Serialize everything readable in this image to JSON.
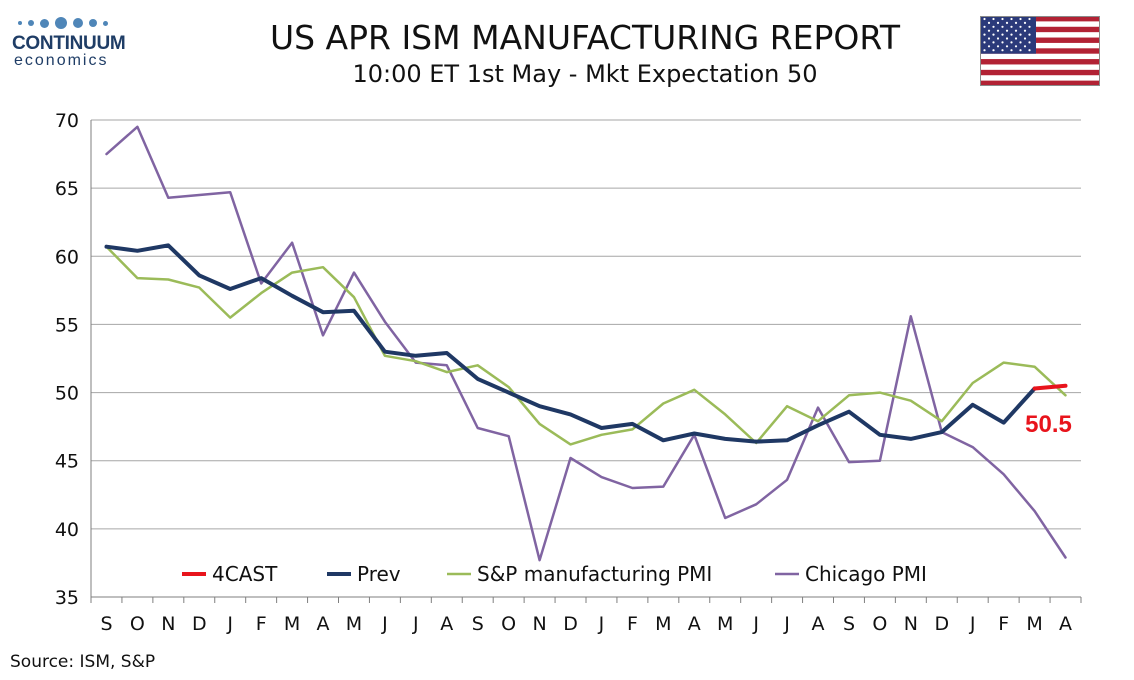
{
  "logo": {
    "name": "CONTINUUM",
    "sub": "economics"
  },
  "header": {
    "title": "US APR ISM MANUFACTURING REPORT",
    "subtitle": "10:00 ET 1st May - Mkt Expectation 50"
  },
  "flag_icon": "us-flag-icon",
  "source": "Source: ISM, S&P",
  "colors": {
    "forecast": "#e8141c",
    "prev": "#1f3864",
    "sp": "#9bbb59",
    "chicago": "#8064a2",
    "grid": "#a6a6a6"
  },
  "chart_data": {
    "type": "line",
    "categories": [
      "S",
      "O",
      "N",
      "D",
      "J",
      "F",
      "M",
      "A",
      "M",
      "J",
      "J",
      "A",
      "S",
      "O",
      "N",
      "D",
      "J",
      "F",
      "M",
      "A",
      "M",
      "J",
      "J",
      "A",
      "S",
      "O",
      "N",
      "D",
      "J",
      "F",
      "M",
      "A"
    ],
    "ylim": [
      35,
      70
    ],
    "yticks": [
      "35",
      "40",
      "45",
      "50",
      "55",
      "60",
      "65",
      "70"
    ],
    "grid": true,
    "legend_position": "bottom",
    "series": [
      {
        "name": "4CAST",
        "color": "#e8141c",
        "values": [
          null,
          null,
          null,
          null,
          null,
          null,
          null,
          null,
          null,
          null,
          null,
          null,
          null,
          null,
          null,
          null,
          null,
          null,
          null,
          null,
          null,
          null,
          null,
          null,
          null,
          null,
          null,
          null,
          null,
          null,
          50.3,
          50.5
        ]
      },
      {
        "name": "Prev",
        "color": "#1f3864",
        "values": [
          60.7,
          60.4,
          60.8,
          58.6,
          57.6,
          58.4,
          57.1,
          55.9,
          56.0,
          53.0,
          52.7,
          52.9,
          51.0,
          50.0,
          49.0,
          48.4,
          47.4,
          47.7,
          46.5,
          47.0,
          46.6,
          46.4,
          46.5,
          47.6,
          48.6,
          46.9,
          46.6,
          47.1,
          49.1,
          47.8,
          50.3,
          null
        ]
      },
      {
        "name": "S&P manufacturing PMI",
        "color": "#9bbb59",
        "values": [
          60.7,
          58.4,
          58.3,
          57.7,
          55.5,
          57.3,
          58.8,
          59.2,
          57.0,
          52.7,
          52.3,
          51.5,
          52.0,
          50.4,
          47.7,
          46.2,
          46.9,
          47.3,
          49.2,
          50.2,
          48.4,
          46.3,
          49.0,
          47.9,
          49.8,
          50.0,
          49.4,
          47.9,
          50.7,
          52.2,
          51.9,
          49.8
        ]
      },
      {
        "name": "Chicago PMI",
        "color": "#8064a2",
        "values": [
          67.5,
          69.5,
          64.3,
          64.5,
          64.7,
          58.0,
          61.0,
          54.2,
          58.8,
          55.2,
          52.2,
          52.0,
          47.4,
          46.8,
          37.7,
          45.2,
          43.8,
          43.0,
          43.1,
          46.9,
          40.8,
          41.8,
          43.6,
          48.9,
          44.9,
          45.0,
          55.6,
          47.1,
          46.0,
          44.0,
          41.3,
          37.9
        ]
      }
    ],
    "annotations": [
      {
        "text": "50.5",
        "series": "4CAST",
        "index": 31
      }
    ]
  }
}
